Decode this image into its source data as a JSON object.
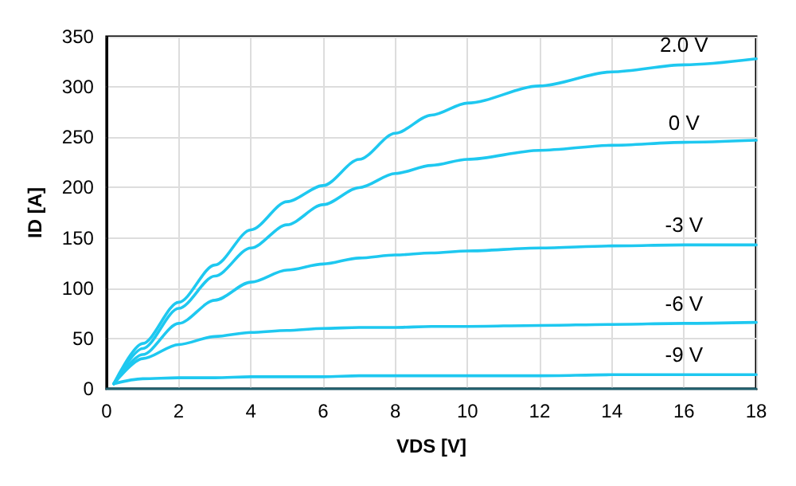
{
  "chart_data": {
    "type": "line",
    "xlabel": "VDS [V]",
    "ylabel": "ID [A]",
    "xlim": [
      0,
      18
    ],
    "xticks": [
      0,
      2,
      4,
      6,
      8,
      10,
      12,
      14,
      16,
      18
    ],
    "ylim": [
      0,
      350
    ],
    "yticks": [
      0,
      50,
      100,
      150,
      200,
      250,
      300,
      350
    ],
    "grid": true,
    "legend": false,
    "marker": "none",
    "line_style": "solid",
    "x": [
      0.2,
      1,
      2,
      3,
      4,
      5,
      6,
      7,
      8,
      9,
      10,
      12,
      14,
      16,
      18
    ],
    "series": [
      {
        "name": "2.0 V",
        "color": "#1ec8f0",
        "values": [
          5,
          45,
          86,
          123,
          158,
          186,
          202,
          228,
          254,
          272,
          284,
          301,
          315,
          322,
          328
        ]
      },
      {
        "name": "0 V",
        "color": "#1ec8f0",
        "values": [
          5,
          40,
          80,
          112,
          140,
          163,
          183,
          200,
          214,
          222,
          228,
          237,
          242,
          245,
          247
        ]
      },
      {
        "name": "-3 V",
        "color": "#1ec8f0",
        "values": [
          5,
          34,
          65,
          88,
          106,
          118,
          124,
          130,
          133,
          135,
          137,
          140,
          142,
          143,
          143
        ]
      },
      {
        "name": "-6 V",
        "color": "#1ec8f0",
        "values": [
          5,
          30,
          44,
          52,
          56,
          58,
          60,
          61,
          61,
          62,
          62,
          63,
          64,
          65,
          66
        ]
      },
      {
        "name": "-9 V",
        "color": "#1ec8f0",
        "values": [
          5,
          10,
          11,
          11,
          12,
          12,
          12,
          13,
          13,
          13,
          13,
          13,
          14,
          14,
          14
        ]
      }
    ]
  }
}
